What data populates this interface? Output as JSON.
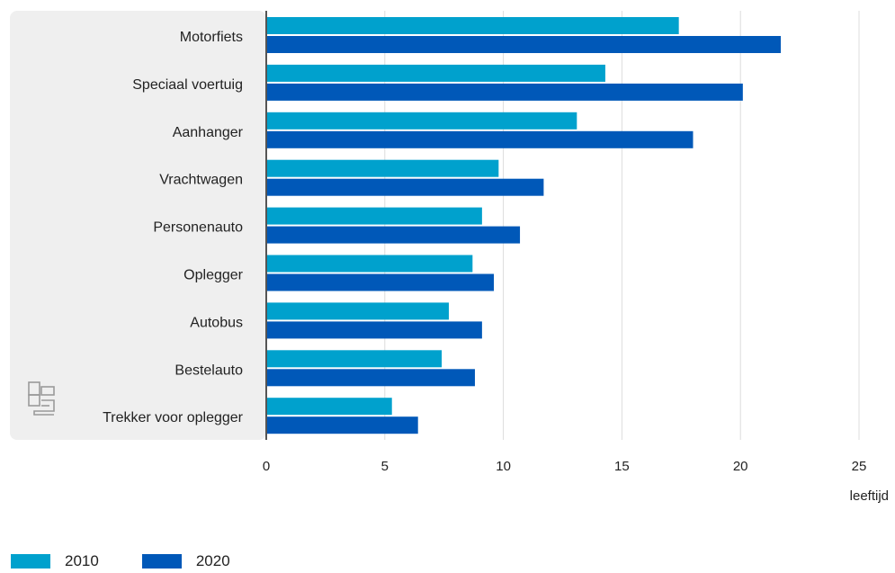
{
  "chart_data": {
    "type": "bar",
    "orientation": "horizontal",
    "categories": [
      "Motorfiets",
      "Speciaal voertuig",
      "Aanhanger",
      "Vrachtwagen",
      "Personenauto",
      "Oplegger",
      "Autobus",
      "Bestelauto",
      "Trekker voor oplegger"
    ],
    "series": [
      {
        "name": "2010",
        "color": "#00a1cd",
        "values": [
          17.4,
          14.3,
          13.1,
          9.8,
          9.1,
          8.7,
          7.7,
          7.4,
          5.3
        ]
      },
      {
        "name": "2020",
        "color": "#0058b8",
        "values": [
          21.7,
          20.1,
          18.0,
          11.7,
          10.7,
          9.6,
          9.1,
          8.8,
          6.4
        ]
      }
    ],
    "xlim": [
      0,
      25
    ],
    "xticks": [
      "0",
      "5",
      "10",
      "15",
      "20",
      "25"
    ],
    "xlabel": "leeftijd",
    "grid": true,
    "legend": "bottom-left"
  },
  "logo_icon": "cbs-logo-icon"
}
